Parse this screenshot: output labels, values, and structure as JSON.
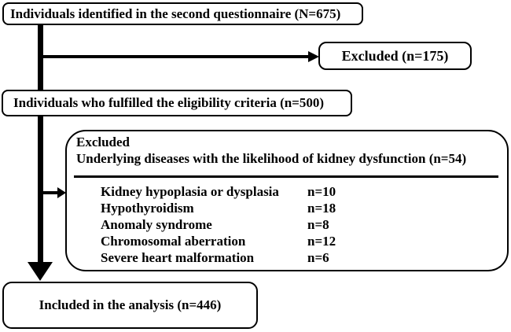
{
  "flow": {
    "identified": {
      "label": "Individuals identified in the second questionnaire (N=675)"
    },
    "excluded1": {
      "label": "Excluded (n=175)"
    },
    "eligible": {
      "label": "Individuals who fulfilled the eligibility criteria (n=500)"
    },
    "excluded2": {
      "heading": "Excluded",
      "subheading": "Underlying diseases with the likelihood of kidney dysfunction (n=54)",
      "items": [
        {
          "label": "Kidney hypoplasia or dysplasia",
          "value": "n=10"
        },
        {
          "label": "Hypothyroidism",
          "value": "n=18"
        },
        {
          "label": "Anomaly syndrome",
          "value": "n=8"
        },
        {
          "label": "Chromosomal aberration",
          "value": "n=12"
        },
        {
          "label": "Severe heart malformation",
          "value": "n=6"
        }
      ]
    },
    "included": {
      "label": "Included in the analysis (n=446)"
    },
    "colors": {
      "line": "#000000",
      "text": "#000000",
      "background": "#ffffff"
    }
  }
}
